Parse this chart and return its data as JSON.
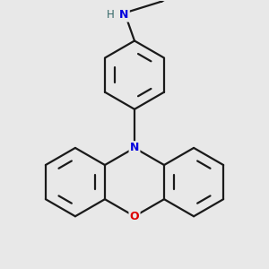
{
  "bg": "#e8e8e8",
  "bond_color": "#1a1a1a",
  "N_color": "#0000dd",
  "O_color": "#dd0000",
  "H_color": "#336666",
  "lw": 1.6,
  "figsize": [
    3.0,
    3.0
  ],
  "dpi": 100,
  "xlim": [
    -4.5,
    4.5
  ],
  "ylim": [
    -4.5,
    4.5
  ]
}
